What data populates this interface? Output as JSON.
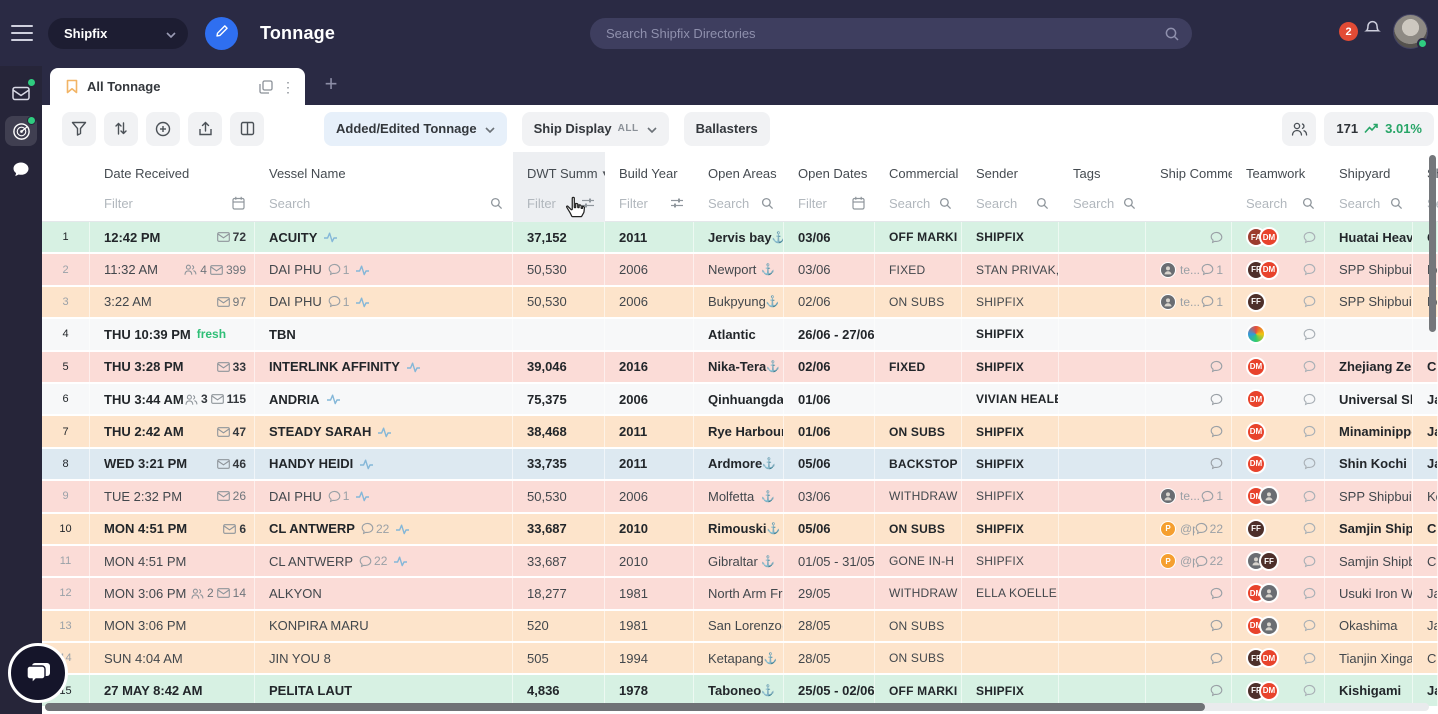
{
  "topbar": {
    "workspace": "Shipfix",
    "title": "Tonnage",
    "search_placeholder": "Search Shipfix Directories",
    "notification_count": "2"
  },
  "sidebar": {
    "items": [
      "inbox",
      "tonnage",
      "chat"
    ],
    "active": "tonnage"
  },
  "tabs": {
    "active_label": "All Tonnage",
    "kebab": "⋮",
    "plus": "+"
  },
  "toolbar": {
    "added_edited_label": "Added/Edited Tonnage",
    "ship_display_label": "Ship Display",
    "ship_display_mode": "ALL",
    "ballasters_label": "Ballasters",
    "result_count": "171",
    "trend_percent": "3.01%"
  },
  "colors": {
    "accent_blue": "#2f6ff0",
    "fresh_green": "#2fbf77",
    "trend_green": "#27a567",
    "badge_red": "#e24b35",
    "row_mint": "#d7f1e3",
    "row_pink": "#fbdcd7",
    "row_peach": "#fde4cb",
    "row_white": "#f7f8f9",
    "row_blue": "#dde9f1"
  },
  "table": {
    "columns": [
      {
        "label": "",
        "filter": "",
        "icon": ""
      },
      {
        "label": "Date Received",
        "filter": "Filter",
        "icon": "calendar"
      },
      {
        "label": "Vessel Name",
        "filter": "Search",
        "icon": "search"
      },
      {
        "label": "DWT Summ",
        "sort": true,
        "filter": "Filter",
        "icon": "sliders",
        "highlight": true
      },
      {
        "label": "Build Year",
        "filter": "Filter",
        "icon": "sliders"
      },
      {
        "label": "Open Areas",
        "filter": "Search",
        "icon": "search"
      },
      {
        "label": "Open Dates",
        "filter": "Filter",
        "icon": "calendar"
      },
      {
        "label": "Commercial S",
        "filter": "Search",
        "icon": "search"
      },
      {
        "label": "Sender",
        "filter": "Search",
        "icon": "search"
      },
      {
        "label": "Tags",
        "filter": "Search",
        "icon": "search"
      },
      {
        "label": "Ship Commen",
        "filter": "",
        "icon": ""
      },
      {
        "label": "Teamwork",
        "filter": "Search",
        "icon": "search"
      },
      {
        "label": "Shipyard",
        "filter": "Search",
        "icon": "search"
      },
      {
        "label": "Sh",
        "filter": "Se",
        "icon": ""
      }
    ],
    "rows": [
      {
        "num": "1",
        "time": "12:42 PM",
        "fresh": false,
        "people": null,
        "mail": "72",
        "vessel": "ACUITY",
        "vchat": null,
        "pulse": true,
        "dwt": "37,152",
        "year": "2011",
        "area": "Jervis bay",
        "anchor": true,
        "dates": "03/06",
        "status": "OFF MARKI",
        "sender": "SHIPFIX",
        "tags": "",
        "shipc": {
          "chat": true
        },
        "teamwork": [
          "fa",
          "dm"
        ],
        "shipyard": "Huatai Heavy",
        "country": "Ch",
        "bg": "mint",
        "unread": true
      },
      {
        "num": "2",
        "time": "11:32 AM",
        "fresh": false,
        "people": "4",
        "mail": "399",
        "vessel": "DAI PHU",
        "vchat": "1",
        "pulse": true,
        "dwt": "50,530",
        "year": "2006",
        "area": "Newport",
        "anchor": true,
        "dates": "03/06",
        "status": "FIXED",
        "sender": "STAN PRIVAK,",
        "tags": "",
        "shipc": {
          "avatar": "photo",
          "text": "te...",
          "count": "1"
        },
        "teamwork": [
          "ff",
          "dm"
        ],
        "shipyard": "SPP Shipbuild",
        "country": "Ko",
        "bg": "pink",
        "unread": false
      },
      {
        "num": "3",
        "time": "3:22 AM",
        "fresh": false,
        "people": null,
        "mail": "97",
        "vessel": "DAI PHU",
        "vchat": "1",
        "pulse": true,
        "dwt": "50,530",
        "year": "2006",
        "area": "Bukpyung",
        "anchor": true,
        "dates": "02/06",
        "status": "ON SUBS",
        "sender": "SHIPFIX",
        "tags": "",
        "shipc": {
          "avatar": "photo",
          "text": "te...",
          "count": "1"
        },
        "teamwork": [
          "ff"
        ],
        "shipyard": "SPP Shipbuild",
        "country": "Ko",
        "bg": "peach",
        "unread": false
      },
      {
        "num": "4",
        "time": "THU 10:39 PM",
        "fresh": true,
        "fresh_label": "fresh",
        "people": null,
        "mail": null,
        "vessel": "TBN",
        "vchat": null,
        "pulse": false,
        "dwt": "",
        "year": "",
        "area": "Atlantic",
        "anchor": false,
        "dates": "26/06 - 27/06",
        "status": "",
        "sender": "SHIPFIX",
        "tags": "",
        "shipc": {},
        "teamwork": [
          "globe"
        ],
        "shipyard": "",
        "country": "",
        "bg": "white",
        "unread": true
      },
      {
        "num": "5",
        "time": "THU 3:28 PM",
        "fresh": false,
        "people": null,
        "mail": "33",
        "vessel": "INTERLINK AFFINITY",
        "vchat": null,
        "pulse": true,
        "dwt": "39,046",
        "year": "2016",
        "area": "Nika-Tera",
        "anchor": true,
        "dates": "02/06",
        "status": "FIXED",
        "sender": "SHIPFIX",
        "tags": "",
        "shipc": {
          "chat": true
        },
        "teamwork": [
          "dm"
        ],
        "shipyard": "Zhejiang Zeng",
        "country": "Ch",
        "bg": "pink",
        "unread": true
      },
      {
        "num": "6",
        "time": "THU 3:44 AM",
        "fresh": false,
        "people": "3",
        "mail": "115",
        "vessel": "ANDRIA",
        "vchat": null,
        "pulse": true,
        "dwt": "75,375",
        "year": "2006",
        "area": "Qinhuangdao",
        "anchor": false,
        "dates": "01/06",
        "status": "",
        "sender": "VIVIAN HEALE",
        "tags": "",
        "shipc": {
          "chat": true
        },
        "teamwork": [
          "dm"
        ],
        "shipyard": "Universal Shb",
        "country": "Ja",
        "bg": "white",
        "unread": true
      },
      {
        "num": "7",
        "time": "THU 2:42 AM",
        "fresh": false,
        "people": null,
        "mail": "47",
        "vessel": "STEADY SARAH",
        "vchat": null,
        "pulse": true,
        "dwt": "38,468",
        "year": "2011",
        "area": "Rye Harbour",
        "anchor": true,
        "dates": "01/06",
        "status": "ON SUBS",
        "sender": "SHIPFIX",
        "tags": "",
        "shipc": {
          "chat": true
        },
        "teamwork": [
          "dm"
        ],
        "shipyard": "Minaminippor",
        "country": "Ja",
        "bg": "peach",
        "unread": true
      },
      {
        "num": "8",
        "time": "WED 3:21 PM",
        "fresh": false,
        "people": null,
        "mail": "46",
        "vessel": "HANDY HEIDI",
        "vchat": null,
        "pulse": true,
        "dwt": "33,735",
        "year": "2011",
        "area": "Ardmore",
        "anchor": true,
        "dates": "05/06",
        "status": "BACKSTOP",
        "sender": "SHIPFIX",
        "tags": "",
        "shipc": {
          "chat": true
        },
        "teamwork": [
          "dm"
        ],
        "shipyard": "Shin Kochi",
        "country": "Ja",
        "bg": "blue",
        "unread": true
      },
      {
        "num": "9",
        "time": "TUE 2:32 PM",
        "fresh": false,
        "people": null,
        "mail": "26",
        "vessel": "DAI PHU",
        "vchat": "1",
        "pulse": true,
        "dwt": "50,530",
        "year": "2006",
        "area": "Molfetta",
        "anchor": true,
        "dates": "03/06",
        "status": "WITHDRAW",
        "sender": "SHIPFIX",
        "tags": "",
        "shipc": {
          "avatar": "photo",
          "text": "te...",
          "count": "1"
        },
        "teamwork": [
          "dm",
          "photo"
        ],
        "shipyard": "SPP Shipbuild",
        "country": "Ko",
        "bg": "pink",
        "unread": false
      },
      {
        "num": "10",
        "time": "MON 4:51 PM",
        "fresh": false,
        "people": null,
        "mail": "6",
        "vessel": "CL ANTWERP",
        "vchat": "22",
        "pulse": true,
        "dwt": "33,687",
        "year": "2010",
        "area": "Rimouski",
        "anchor": true,
        "dates": "05/06",
        "status": "ON SUBS",
        "sender": "SHIPFIX",
        "tags": "",
        "shipc": {
          "avatar": "p",
          "text": "@p",
          "count": "22"
        },
        "teamwork": [
          "ff"
        ],
        "shipyard": "Samjin Shipbu",
        "country": "Ch",
        "bg": "peach",
        "unread": true
      },
      {
        "num": "11",
        "time": "MON 4:51 PM",
        "fresh": false,
        "people": null,
        "mail": null,
        "vessel": "CL ANTWERP",
        "vchat": "22",
        "pulse": true,
        "dwt": "33,687",
        "year": "2010",
        "area": "Gibraltar",
        "anchor": true,
        "dates": "01/05 - 31/05",
        "status": "GONE IN-H",
        "sender": "SHIPFIX",
        "tags": "",
        "shipc": {
          "avatar": "p",
          "text": "@p",
          "count": "22"
        },
        "teamwork": [
          "photo",
          "ff"
        ],
        "shipyard": "Samjin Shipbu",
        "country": "Ch",
        "bg": "pink",
        "unread": false
      },
      {
        "num": "12",
        "time": "MON 3:06 PM",
        "fresh": false,
        "people": "2",
        "mail": "14",
        "vessel": "ALKYON",
        "vchat": null,
        "pulse": false,
        "dwt": "18,277",
        "year": "1981",
        "area": "North Arm Fra",
        "anchor": false,
        "dates": "29/05",
        "status": "WITHDRAW",
        "sender": "ELLA KOELLEI",
        "tags": "",
        "shipc": {
          "chat": true
        },
        "teamwork": [
          "dm",
          "photo"
        ],
        "shipyard": "Usuki Iron Wo",
        "country": "Ja",
        "bg": "pink",
        "unread": false
      },
      {
        "num": "13",
        "time": "MON 3:06 PM",
        "fresh": false,
        "people": null,
        "mail": null,
        "vessel": "KONPIRA MARU",
        "vchat": null,
        "pulse": false,
        "dwt": "520",
        "year": "1981",
        "area": "San Lorenzo",
        "anchor": true,
        "dates": "28/05",
        "status": "ON SUBS",
        "sender": "",
        "tags": "",
        "shipc": {
          "chat": true
        },
        "teamwork": [
          "dm",
          "photo"
        ],
        "shipyard": "Okashima",
        "country": "Ja",
        "bg": "peach",
        "unread": false
      },
      {
        "num": "14",
        "time": "SUN 4:04 AM",
        "fresh": false,
        "people": null,
        "mail": null,
        "vessel": "JIN YOU 8",
        "vchat": null,
        "pulse": false,
        "dwt": "505",
        "year": "1994",
        "area": "Ketapang",
        "anchor": true,
        "dates": "28/05",
        "status": "ON SUBS",
        "sender": "",
        "tags": "",
        "shipc": {
          "chat": true
        },
        "teamwork": [
          "ff",
          "dm"
        ],
        "shipyard": "Tianjin Xingan",
        "country": "Ch",
        "bg": "peach",
        "unread": false
      },
      {
        "num": "15",
        "time": "27 MAY 8:42 AM",
        "fresh": false,
        "people": null,
        "mail": null,
        "vessel": "PELITA LAUT",
        "vchat": null,
        "pulse": false,
        "dwt": "4,836",
        "year": "1978",
        "area": "Taboneo",
        "anchor": true,
        "dates": "25/05 - 02/06",
        "status": "OFF MARKI",
        "sender": "SHIPFIX",
        "tags": "",
        "shipc": {
          "chat": true
        },
        "teamwork": [
          "ff",
          "dm"
        ],
        "shipyard": "Kishigami",
        "country": "Ja",
        "bg": "mint",
        "unread": true
      }
    ]
  }
}
